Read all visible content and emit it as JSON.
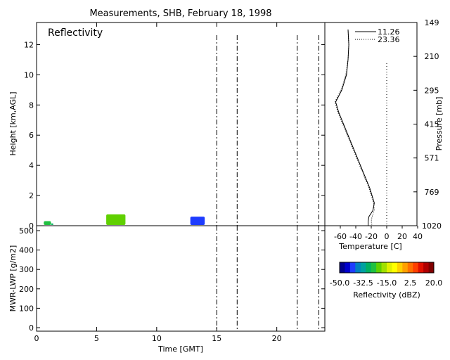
{
  "chart_data": [
    {
      "type": "heatmap",
      "title": "Measurements, SHB, February 18, 1998",
      "panel_label": "Reflectivity",
      "ylabel": "Height [km,AGL]",
      "xlim": [
        0,
        24
      ],
      "ylim": [
        0,
        13
      ],
      "yticks": [
        0,
        2,
        4,
        6,
        8,
        10,
        12
      ],
      "vertical_lines_hours": [
        15.0,
        16.7,
        21.7,
        23.5
      ],
      "echoes": [
        {
          "t_start": 0.6,
          "t_end": 1.2,
          "h_top": 0.3,
          "dbz": -25
        },
        {
          "t_start": 1.2,
          "t_end": 1.4,
          "h_top": 0.15,
          "dbz": -30
        },
        {
          "t_start": 5.8,
          "t_end": 7.4,
          "h_top": 0.75,
          "dbz": -20
        },
        {
          "t_start": 12.8,
          "t_end": 14.0,
          "h_top": 0.6,
          "dbz": -40
        }
      ]
    },
    {
      "type": "line",
      "xlabel": "Time [GMT]",
      "ylabel": "MWR-LWP [g/m2]",
      "xlim": [
        0,
        24
      ],
      "xticks": [
        0,
        5,
        10,
        15,
        20
      ],
      "ylim": [
        0,
        500
      ],
      "yticks": [
        0,
        100,
        200,
        300,
        400,
        500
      ],
      "vertical_lines_hours": [
        15.0,
        16.7,
        21.7,
        23.5
      ]
    },
    {
      "type": "line",
      "xlabel": "Temperature [C]",
      "ylabel_right": "Pressure [mb]",
      "xticks": [
        -60,
        -40,
        -20,
        0,
        20,
        40
      ],
      "xtick_labels": [
        "-60",
        "-40",
        "-20",
        "0",
        "20",
        "40"
      ],
      "pressure_ticks": [
        "149",
        "210",
        "295",
        "415",
        "571",
        "769",
        "1020"
      ],
      "legend": "top-right",
      "series": [
        {
          "name": "11.26",
          "style": "solid",
          "points": [
            [
              -50,
              13
            ],
            [
              -49,
              12
            ],
            [
              -50,
              11
            ],
            [
              -52,
              10
            ],
            [
              -58,
              9
            ],
            [
              -66,
              8.2
            ],
            [
              -62,
              7.5
            ],
            [
              -54,
              6.5
            ],
            [
              -46,
              5.5
            ],
            [
              -38,
              4.5
            ],
            [
              -30,
              3.5
            ],
            [
              -22,
              2.5
            ],
            [
              -16,
              1.5
            ],
            [
              -18,
              1
            ],
            [
              -23,
              0.6
            ],
            [
              -24,
              0.3
            ],
            [
              -24,
              0
            ]
          ]
        },
        {
          "name": "23.36",
          "style": "dotted",
          "points": [
            [
              -50,
              13
            ],
            [
              -49,
              12
            ],
            [
              -50,
              11
            ],
            [
              -53,
              10
            ],
            [
              -59,
              9
            ],
            [
              -67,
              8.2
            ],
            [
              -63,
              7.5
            ],
            [
              -55,
              6.5
            ],
            [
              -47,
              5.5
            ],
            [
              -39,
              4.5
            ],
            [
              -31,
              3.5
            ],
            [
              -23,
              2.5
            ],
            [
              -17,
              1.5
            ],
            [
              -16,
              1
            ],
            [
              -19,
              0.6
            ],
            [
              -20,
              0.3
            ],
            [
              -19,
              0
            ]
          ]
        }
      ],
      "zero_line": 0
    }
  ],
  "colorbar": {
    "label": "Reflectivity (dBZ)",
    "tick_labels": [
      "-50.0",
      "-32.5",
      "-15.0",
      "2.5",
      "20.0"
    ],
    "colors": [
      "#00008b",
      "#0000cd",
      "#1e3cff",
      "#0080c0",
      "#00a0a0",
      "#00b060",
      "#20c040",
      "#60d000",
      "#a0e000",
      "#e0f000",
      "#ffff00",
      "#ffd000",
      "#ffa000",
      "#ff7000",
      "#ff4000",
      "#e01000",
      "#b00000",
      "#800000"
    ]
  }
}
